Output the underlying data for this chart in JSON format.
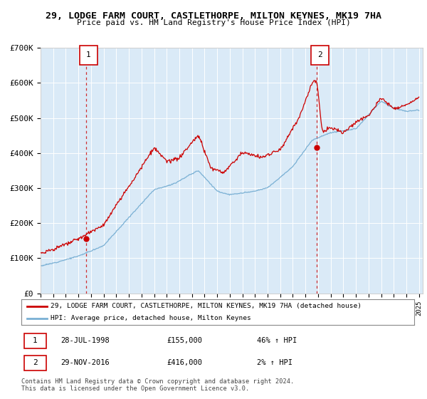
{
  "title": "29, LODGE FARM COURT, CASTLETHORPE, MILTON KEYNES, MK19 7HA",
  "subtitle": "Price paid vs. HM Land Registry's House Price Index (HPI)",
  "background_color": "#daeaf7",
  "red_line_color": "#cc0000",
  "blue_line_color": "#7ab0d4",
  "sale1_value": 155000,
  "sale1_label": "28-JUL-1998",
  "sale1_price": "£155,000",
  "sale1_hpi": "46% ↑ HPI",
  "sale2_value": 416000,
  "sale2_label": "29-NOV-2016",
  "sale2_price": "£416,000",
  "sale2_hpi": "2% ↑ HPI",
  "ylim": [
    0,
    700000
  ],
  "yticks": [
    0,
    100000,
    200000,
    300000,
    400000,
    500000,
    600000,
    700000
  ],
  "legend_line1": "29, LODGE FARM COURT, CASTLETHORPE, MILTON KEYNES, MK19 7HA (detached house)",
  "legend_line2": "HPI: Average price, detached house, Milton Keynes",
  "footer": "Contains HM Land Registry data © Crown copyright and database right 2024.\nThis data is licensed under the Open Government Licence v3.0."
}
